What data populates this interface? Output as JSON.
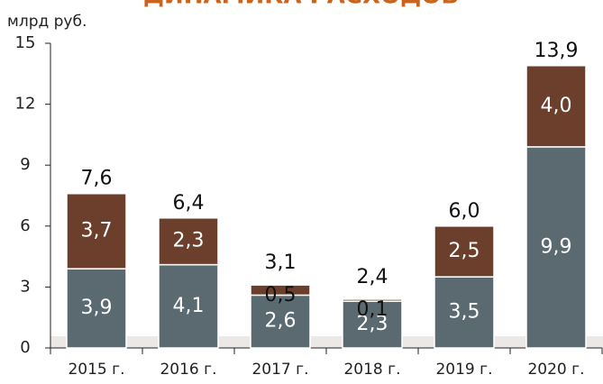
{
  "chart_data": {
    "type": "stacked_bar",
    "title": "ДИНАМИКА РАСХОДОВ",
    "y_label": "млрд руб.",
    "categories": [
      "2015 г.",
      "2016 г.",
      "2017 г.",
      "2018 г.",
      "2019 г.",
      "2020 г."
    ],
    "series": [
      {
        "color": "#5a6a70",
        "values": [
          3.9,
          4.1,
          2.6,
          2.3,
          3.5,
          9.9
        ],
        "value_labels": [
          "3,9",
          "4,1",
          "2,6",
          "2,3",
          "3,5",
          "9,9"
        ]
      },
      {
        "color": "#6b3f2c",
        "values": [
          3.7,
          2.3,
          0.5,
          0.1,
          2.5,
          4.0
        ],
        "value_labels": [
          "3,7",
          "2,3",
          "0,5",
          "0,1",
          "2,5",
          "4,0"
        ]
      }
    ],
    "totals": {
      "values": [
        7.6,
        6.4,
        3.1,
        2.4,
        6.0,
        13.9
      ],
      "value_labels": [
        "7,6",
        "6,4",
        "3,1",
        "2,4",
        "6,0",
        "13,9"
      ]
    },
    "ylim": [
      0,
      15
    ],
    "yticks": [
      0,
      3,
      6,
      9,
      12,
      15
    ]
  }
}
